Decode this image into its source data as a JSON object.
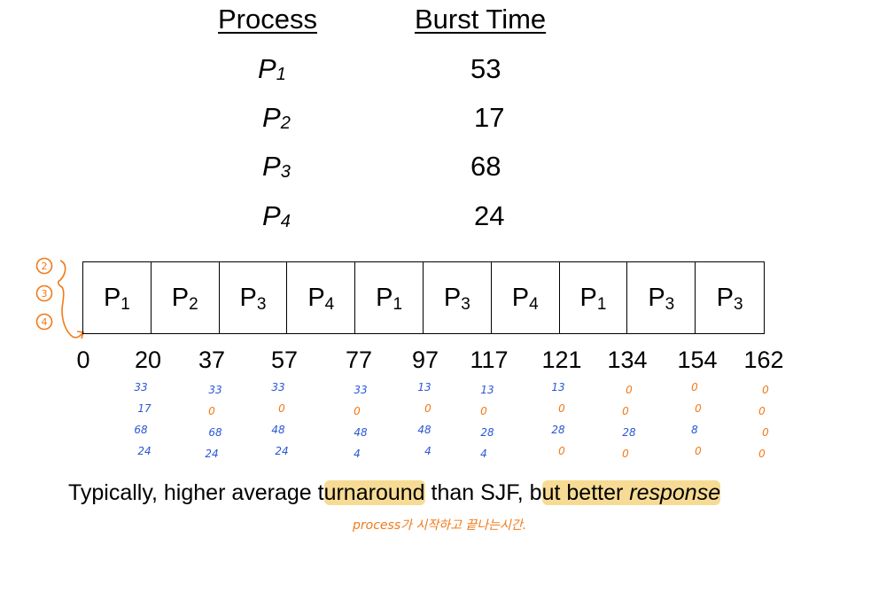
{
  "table": {
    "header_process": "Process",
    "header_burst": "Burst Time",
    "rows": [
      {
        "p": "P",
        "sub": "1",
        "burst": "53"
      },
      {
        "p": "P",
        "sub": "2",
        "burst": "17"
      },
      {
        "p": "P",
        "sub": "3",
        "burst": "68"
      },
      {
        "p": "P",
        "sub": "4",
        "burst": "24"
      }
    ]
  },
  "margin_marks": [
    "2",
    "3",
    "4"
  ],
  "gantt": {
    "cells": [
      {
        "p": "P",
        "sub": "1"
      },
      {
        "p": "P",
        "sub": "2"
      },
      {
        "p": "P",
        "sub": "3"
      },
      {
        "p": "P",
        "sub": "4"
      },
      {
        "p": "P",
        "sub": "1"
      },
      {
        "p": "P",
        "sub": "3"
      },
      {
        "p": "P",
        "sub": "4"
      },
      {
        "p": "P",
        "sub": "1"
      },
      {
        "p": "P",
        "sub": "3"
      },
      {
        "p": "P",
        "sub": "3"
      }
    ],
    "ticks": [
      "0",
      "20",
      "37",
      "57",
      "77",
      "97",
      "117",
      "121",
      "134",
      "154",
      "162"
    ]
  },
  "remaining": [
    [
      "33",
      "17",
      "68",
      "24"
    ],
    [
      "33",
      "0",
      "68",
      "24"
    ],
    [
      "33",
      "0",
      "48",
      "24"
    ],
    [
      "33",
      "0",
      "48",
      "4"
    ],
    [
      "13",
      "0",
      "48",
      "4"
    ],
    [
      "13",
      "0",
      "28",
      "4"
    ],
    [
      "13",
      "0",
      "28",
      "0"
    ],
    [
      "0",
      "0",
      "28",
      "0"
    ],
    [
      "0",
      "0",
      "8",
      "0"
    ],
    [
      "0",
      "0",
      "0",
      "0"
    ]
  ],
  "colors": {
    "ink": "#000000",
    "blue_ink": "#2b57d6",
    "orange_ink": "#f07a1a",
    "highlight": "#f0be3c"
  },
  "caption": {
    "part1": "Typically, higher average t",
    "part2": "urnaround",
    "part3": " than SJF, b",
    "part4": "ut better ",
    "part5": "response"
  },
  "handwritten_note": "process가 시작하고 끝나는시간."
}
